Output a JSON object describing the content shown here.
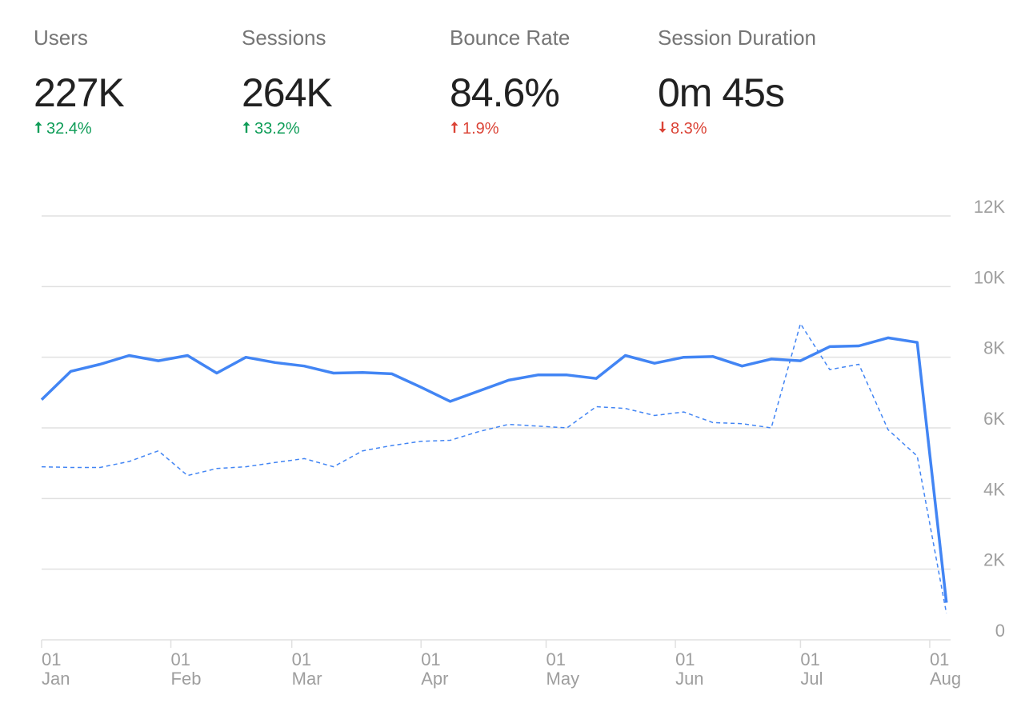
{
  "metrics": [
    {
      "label": "Users",
      "value": "227K",
      "change": "32.4%",
      "direction": "up",
      "change_color": "#0f9d58",
      "active": true
    },
    {
      "label": "Sessions",
      "value": "264K",
      "change": "33.2%",
      "direction": "up",
      "change_color": "#0f9d58",
      "active": false
    },
    {
      "label": "Bounce Rate",
      "value": "84.6%",
      "change": "1.9%",
      "direction": "up",
      "change_color": "#db4437",
      "active": false
    },
    {
      "label": "Session Duration",
      "value": "0m 45s",
      "change": "8.3%",
      "direction": "down",
      "change_color": "#db4437",
      "active": false
    }
  ],
  "colors": {
    "series": "#4285f4",
    "grid": "#e0e0e0",
    "axis_text": "#9e9e9e"
  },
  "chart_data": {
    "type": "line",
    "ylim": [
      0,
      12000
    ],
    "yticks": [
      0,
      2000,
      4000,
      6000,
      8000,
      10000,
      12000
    ],
    "ytick_labels": [
      "0",
      "2K",
      "4K",
      "6K",
      "8K",
      "10K",
      "12K"
    ],
    "xlim": [
      "2024-01-01",
      "2024-08-06"
    ],
    "xticks": [
      {
        "date": "2024-01-01",
        "day": "01",
        "month": "Jan"
      },
      {
        "date": "2024-02-01",
        "day": "01",
        "month": "Feb"
      },
      {
        "date": "2024-03-01",
        "day": "01",
        "month": "Mar"
      },
      {
        "date": "2024-04-01",
        "day": "01",
        "month": "Apr"
      },
      {
        "date": "2024-05-01",
        "day": "01",
        "month": "May"
      },
      {
        "date": "2024-06-01",
        "day": "01",
        "month": "Jun"
      },
      {
        "date": "2024-07-01",
        "day": "01",
        "month": "Jul"
      },
      {
        "date": "2024-08-01",
        "day": "01",
        "month": "Aug"
      }
    ],
    "y_axis_position": "right",
    "grid": true,
    "legend": "none",
    "series": [
      {
        "style": "solid",
        "points": [
          [
            "2024-01-01",
            6800
          ],
          [
            "2024-01-08",
            7600
          ],
          [
            "2024-01-15",
            7800
          ],
          [
            "2024-01-22",
            8050
          ],
          [
            "2024-01-29",
            7900
          ],
          [
            "2024-02-05",
            8050
          ],
          [
            "2024-02-12",
            7550
          ],
          [
            "2024-02-19",
            8000
          ],
          [
            "2024-02-26",
            7850
          ],
          [
            "2024-03-04",
            7750
          ],
          [
            "2024-03-11",
            7550
          ],
          [
            "2024-03-18",
            7570
          ],
          [
            "2024-03-25",
            7530
          ],
          [
            "2024-04-01",
            7150
          ],
          [
            "2024-04-08",
            6750
          ],
          [
            "2024-04-15",
            7050
          ],
          [
            "2024-04-22",
            7350
          ],
          [
            "2024-04-29",
            7500
          ],
          [
            "2024-05-06",
            7500
          ],
          [
            "2024-05-13",
            7400
          ],
          [
            "2024-05-20",
            8050
          ],
          [
            "2024-05-27",
            7830
          ],
          [
            "2024-06-03",
            8000
          ],
          [
            "2024-06-10",
            8020
          ],
          [
            "2024-06-17",
            7750
          ],
          [
            "2024-06-24",
            7950
          ],
          [
            "2024-07-01",
            7900
          ],
          [
            "2024-07-08",
            8300
          ],
          [
            "2024-07-15",
            8320
          ],
          [
            "2024-07-22",
            8550
          ],
          [
            "2024-07-29",
            8420
          ],
          [
            "2024-08-05",
            1050
          ]
        ]
      },
      {
        "style": "dashed",
        "points": [
          [
            "2024-01-01",
            4900
          ],
          [
            "2024-01-08",
            4880
          ],
          [
            "2024-01-15",
            4880
          ],
          [
            "2024-01-22",
            5050
          ],
          [
            "2024-01-29",
            5350
          ],
          [
            "2024-02-05",
            4650
          ],
          [
            "2024-02-12",
            4850
          ],
          [
            "2024-02-19",
            4900
          ],
          [
            "2024-02-26",
            5020
          ],
          [
            "2024-03-04",
            5130
          ],
          [
            "2024-03-11",
            4900
          ],
          [
            "2024-03-18",
            5350
          ],
          [
            "2024-03-25",
            5500
          ],
          [
            "2024-04-01",
            5620
          ],
          [
            "2024-04-08",
            5650
          ],
          [
            "2024-04-15",
            5900
          ],
          [
            "2024-04-22",
            6100
          ],
          [
            "2024-04-29",
            6050
          ],
          [
            "2024-05-06",
            6000
          ],
          [
            "2024-05-13",
            6600
          ],
          [
            "2024-05-20",
            6550
          ],
          [
            "2024-05-27",
            6350
          ],
          [
            "2024-06-03",
            6450
          ],
          [
            "2024-06-10",
            6150
          ],
          [
            "2024-06-17",
            6120
          ],
          [
            "2024-06-24",
            6000
          ],
          [
            "2024-07-01",
            8950
          ],
          [
            "2024-07-08",
            7650
          ],
          [
            "2024-07-15",
            7800
          ],
          [
            "2024-07-22",
            5950
          ],
          [
            "2024-07-29",
            5200
          ],
          [
            "2024-08-05",
            750
          ]
        ]
      }
    ]
  }
}
